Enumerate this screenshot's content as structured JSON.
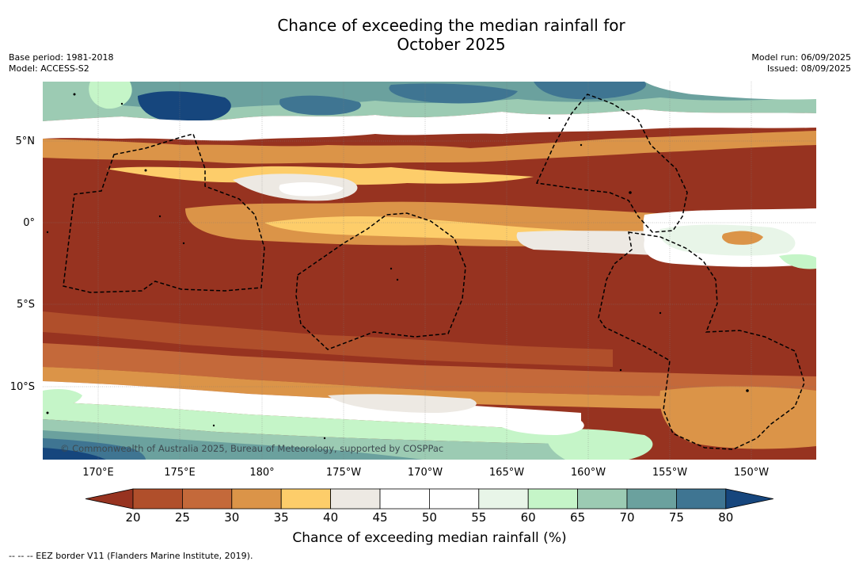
{
  "title_line1": "Chance of exceeding the median rainfall for",
  "title_line2": "October 2025",
  "meta_left": {
    "base_period": "Base period: 1981-2018",
    "model": "Model: ACCESS-S2"
  },
  "meta_right": {
    "model_run": "Model run: 06/09/2025",
    "issued": "Issued: 08/09/2025"
  },
  "lat_labels": [
    "5°N",
    "0°",
    "5°S",
    "10°S"
  ],
  "lon_labels": [
    "170°E",
    "175°E",
    "180°",
    "175°W",
    "170°W",
    "165°W",
    "160°W",
    "155°W",
    "150°W"
  ],
  "copyright": "© Commonwealth of Australia 2025, Bureau of Meteorology, supported by COSPPac",
  "colorbar": {
    "ticks": [
      "20",
      "25",
      "30",
      "35",
      "40",
      "45",
      "50",
      "55",
      "60",
      "65",
      "70",
      "75",
      "80"
    ],
    "colors": [
      "#973320",
      "#b04f2b",
      "#c4693a",
      "#db9448",
      "#fdcd6a",
      "#ede9e3",
      "#ffffff",
      "#ffffff",
      "#e8f5e8",
      "#c5f5c8",
      "#9ccbb3",
      "#6ba19e",
      "#3f7592",
      "#16467d"
    ],
    "title": "Chance of exceeding median rainfall (%)"
  },
  "eez_note": "--  --  -- EEZ border V11 (Flanders Marine Institute, 2019)."
}
